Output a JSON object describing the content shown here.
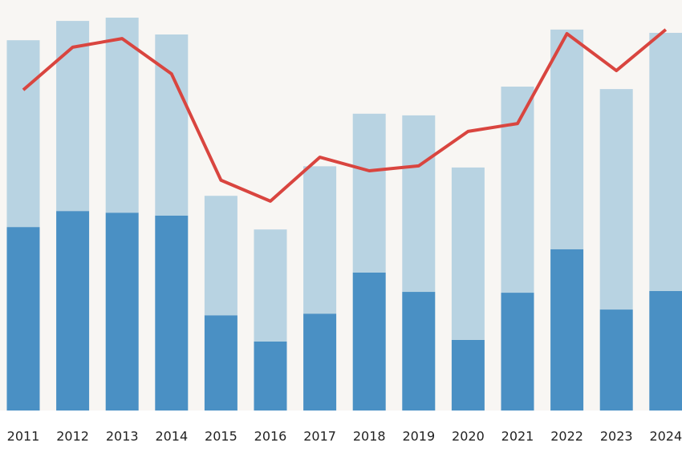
{
  "chart_data": {
    "type": "bar",
    "stacked": true,
    "categories": [
      "2011",
      "2012",
      "2013",
      "2014",
      "2015",
      "2016",
      "2017",
      "2018",
      "2019",
      "2020",
      "2021",
      "2022",
      "2023",
      "2024"
    ],
    "series": [
      {
        "type": "bar",
        "color": "#4a90c4",
        "values": [
          44.7,
          48.6,
          48.2,
          47.5,
          23.2,
          16.8,
          23.6,
          33.6,
          28.9,
          17.2,
          28.7,
          39.3,
          24.6,
          29.1
        ]
      },
      {
        "type": "bar",
        "color": "#b8d3e2",
        "values": [
          45.5,
          46.3,
          47.5,
          44.1,
          29.1,
          27.3,
          35.9,
          38.7,
          43.0,
          42.0,
          50.2,
          53.5,
          53.7,
          62.9
        ]
      },
      {
        "type": "line",
        "color": "#d9453f",
        "values": [
          78.1,
          88.5,
          90.6,
          82.0,
          56.1,
          51.0,
          61.7,
          58.4,
          59.6,
          68.0,
          69.9,
          91.8,
          82.8,
          92.8
        ]
      }
    ],
    "ylim": [
      0,
      100
    ]
  }
}
